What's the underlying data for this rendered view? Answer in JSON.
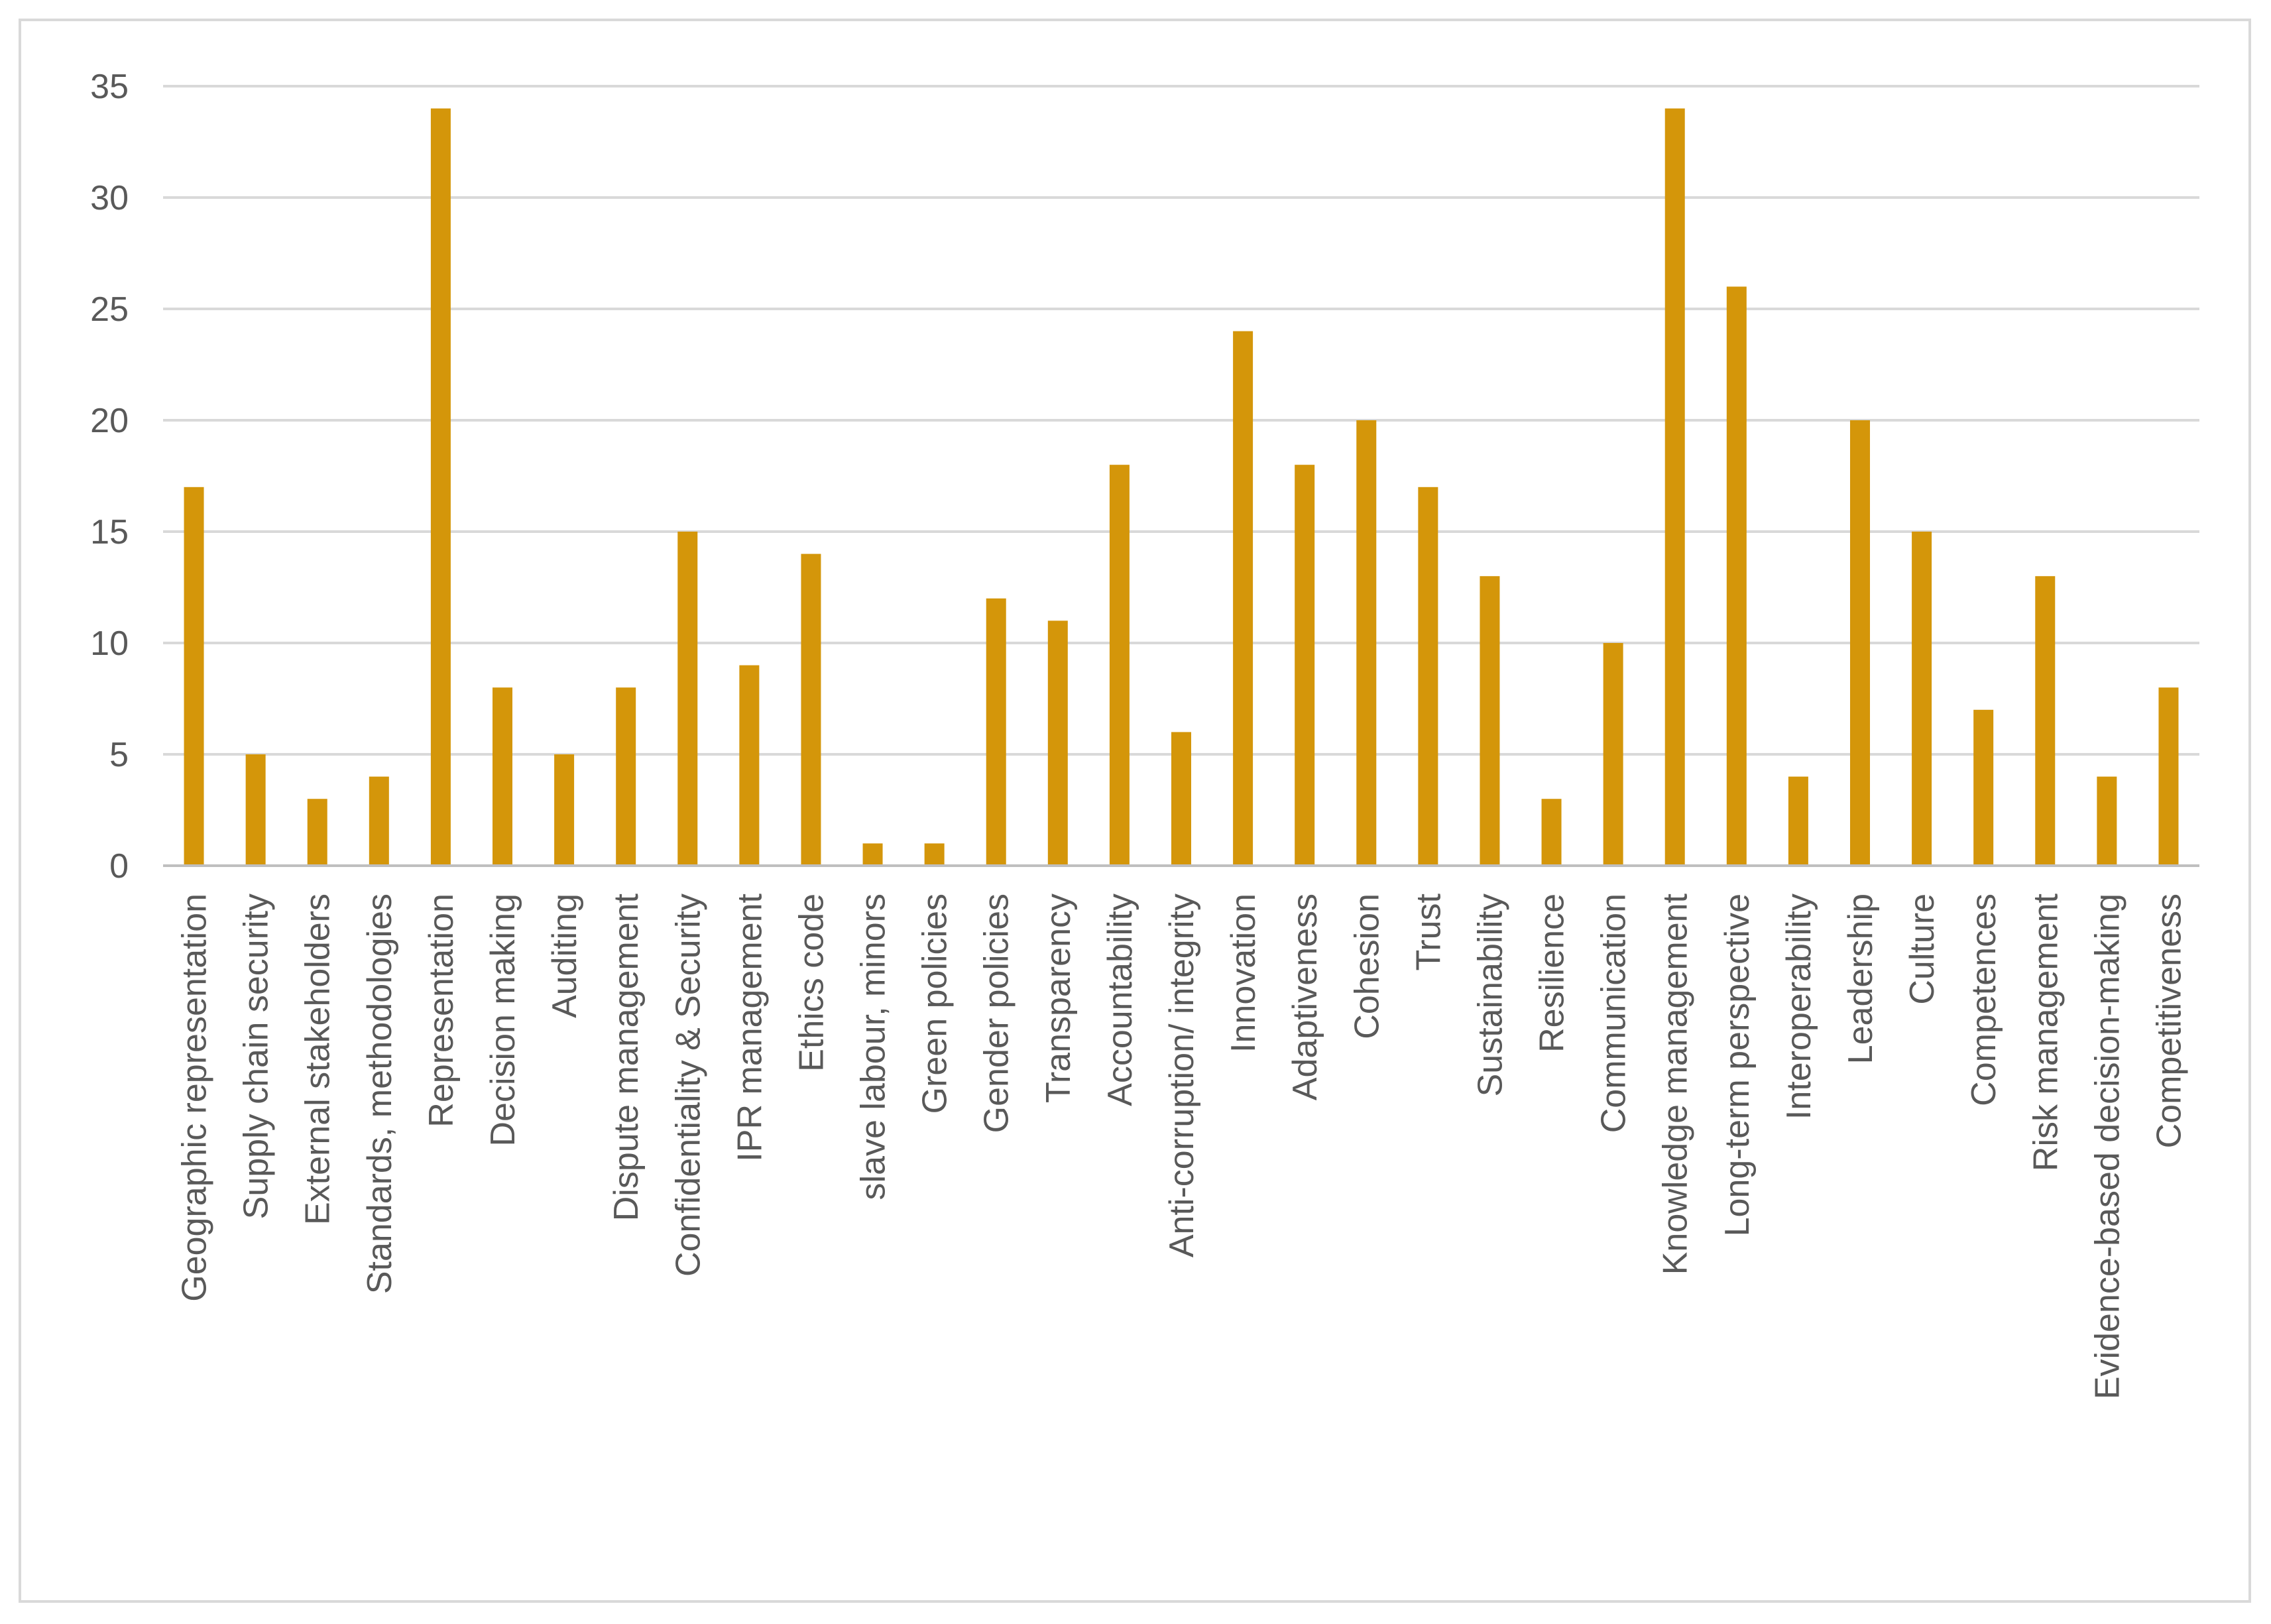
{
  "chart_data": {
    "type": "bar",
    "title": "",
    "xlabel": "",
    "ylabel": "",
    "ylim": [
      0,
      35
    ],
    "yticks": [
      0,
      5,
      10,
      15,
      20,
      25,
      30,
      35
    ],
    "grid": true,
    "legend": "none",
    "bar_color": "#D4960A",
    "grid_color": "#D9D9D9",
    "axis_color": "#BFBFBF",
    "label_color": "#595959",
    "categories": [
      "Geographic representation",
      "Supply chain security",
      "External stakeholders",
      "Standards, methodologies",
      "Representation",
      "Decision making",
      "Auditing",
      "Dispute management",
      "Confidentiality & Security",
      "IPR management",
      "Ethics code",
      "slave labour, minors",
      "Green policies",
      "Gender policies",
      "Transparency",
      "Accountability",
      "Anti-corruption/ integrity",
      "Innovation",
      "Adaptiveness",
      "Cohesion",
      "Trust",
      "Sustainability",
      "Resilience",
      "Communication",
      "Knowledge management",
      "Long-term perspective",
      "Interoperability",
      "Leadership",
      "Culture",
      "Competences",
      "Risk management",
      "Evidence-based decision-making",
      "Competitiveness"
    ],
    "values": [
      17,
      5,
      3,
      4,
      34,
      8,
      5,
      8,
      15,
      9,
      14,
      1,
      1,
      12,
      11,
      18,
      6,
      24,
      18,
      20,
      17,
      13,
      3,
      10,
      34,
      26,
      4,
      20,
      15,
      7,
      13,
      4,
      8
    ]
  }
}
